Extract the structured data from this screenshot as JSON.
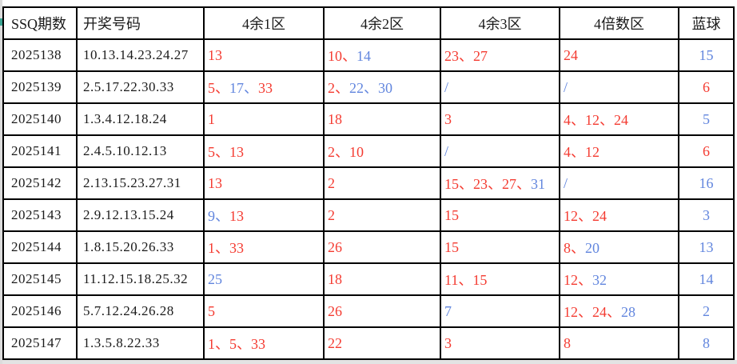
{
  "colors": {
    "red": "#f43b31",
    "blue": "#6286de",
    "text": "#1a1a1a",
    "border": "#000000"
  },
  "table": {
    "columns": [
      {
        "label": "SSQ期数"
      },
      {
        "label": "开奖号码"
      },
      {
        "label": "4余1区"
      },
      {
        "label": "4余2区"
      },
      {
        "label": "4余3区"
      },
      {
        "label": "4倍数区"
      },
      {
        "label": "蓝球"
      }
    ],
    "rows": [
      {
        "period": "2025138",
        "numbers": "10.13.14.23.24.27",
        "zone1": [
          {
            "t": "13",
            "c": "red"
          }
        ],
        "zone2": [
          {
            "t": "10、",
            "c": "red"
          },
          {
            "t": "14",
            "c": "blue"
          }
        ],
        "zone3": [
          {
            "t": "23、27",
            "c": "red"
          }
        ],
        "zone4": [
          {
            "t": "24",
            "c": "red"
          }
        ],
        "blue": {
          "t": "15",
          "c": "blue"
        }
      },
      {
        "period": "2025139",
        "numbers": "2.5.17.22.30.33",
        "zone1": [
          {
            "t": "5、",
            "c": "red"
          },
          {
            "t": "17、",
            "c": "blue"
          },
          {
            "t": "33",
            "c": "red"
          }
        ],
        "zone2": [
          {
            "t": "2、",
            "c": "red"
          },
          {
            "t": "22、30",
            "c": "blue"
          }
        ],
        "zone3": [
          {
            "t": "/",
            "c": "blue"
          }
        ],
        "zone4": [
          {
            "t": "/",
            "c": "blue"
          }
        ],
        "blue": {
          "t": "6",
          "c": "red"
        }
      },
      {
        "period": "2025140",
        "numbers": "1.3.4.12.18.24",
        "zone1": [
          {
            "t": "1",
            "c": "red"
          }
        ],
        "zone2": [
          {
            "t": "18",
            "c": "red"
          }
        ],
        "zone3": [
          {
            "t": "3",
            "c": "red"
          }
        ],
        "zone4": [
          {
            "t": "4、12、24",
            "c": "red"
          }
        ],
        "blue": {
          "t": "5",
          "c": "blue"
        }
      },
      {
        "period": "2025141",
        "numbers": "2.4.5.10.12.13",
        "zone1": [
          {
            "t": "5、13",
            "c": "red"
          }
        ],
        "zone2": [
          {
            "t": "2、10",
            "c": "red"
          }
        ],
        "zone3": [
          {
            "t": "/",
            "c": "blue"
          }
        ],
        "zone4": [
          {
            "t": "4、12",
            "c": "red"
          }
        ],
        "blue": {
          "t": "6",
          "c": "red"
        }
      },
      {
        "period": "2025142",
        "numbers": "2.13.15.23.27.31",
        "zone1": [
          {
            "t": "13",
            "c": "red"
          }
        ],
        "zone2": [
          {
            "t": "2",
            "c": "red"
          }
        ],
        "zone3": [
          {
            "t": "15、23、27、",
            "c": "red"
          },
          {
            "t": "31",
            "c": "blue"
          }
        ],
        "zone4": [
          {
            "t": "/",
            "c": "blue"
          }
        ],
        "blue": {
          "t": "16",
          "c": "blue"
        }
      },
      {
        "period": "2025143",
        "numbers": "2.9.12.13.15.24",
        "zone1": [
          {
            "t": "9、",
            "c": "blue"
          },
          {
            "t": "13",
            "c": "red"
          }
        ],
        "zone2": [
          {
            "t": "2",
            "c": "red"
          }
        ],
        "zone3": [
          {
            "t": "15",
            "c": "red"
          }
        ],
        "zone4": [
          {
            "t": "12、24",
            "c": "red"
          }
        ],
        "blue": {
          "t": "3",
          "c": "blue"
        }
      },
      {
        "period": "2025144",
        "numbers": "1.8.15.20.26.33",
        "zone1": [
          {
            "t": "1、33",
            "c": "red"
          }
        ],
        "zone2": [
          {
            "t": "26",
            "c": "red"
          }
        ],
        "zone3": [
          {
            "t": "15",
            "c": "red"
          }
        ],
        "zone4": [
          {
            "t": "8、",
            "c": "red"
          },
          {
            "t": "20",
            "c": "blue"
          }
        ],
        "blue": {
          "t": "13",
          "c": "blue"
        }
      },
      {
        "period": "2025145",
        "numbers": "11.12.15.18.25.32",
        "zone1": [
          {
            "t": "25",
            "c": "blue"
          }
        ],
        "zone2": [
          {
            "t": "18",
            "c": "red"
          }
        ],
        "zone3": [
          {
            "t": "11、15",
            "c": "red"
          }
        ],
        "zone4": [
          {
            "t": "12、",
            "c": "red"
          },
          {
            "t": "32",
            "c": "blue"
          }
        ],
        "blue": {
          "t": "14",
          "c": "blue"
        }
      },
      {
        "period": "2025146",
        "numbers": "5.7.12.24.26.28",
        "zone1": [
          {
            "t": "5",
            "c": "red"
          }
        ],
        "zone2": [
          {
            "t": "26",
            "c": "red"
          }
        ],
        "zone3": [
          {
            "t": "7",
            "c": "blue"
          }
        ],
        "zone4": [
          {
            "t": "12、24、",
            "c": "red"
          },
          {
            "t": "28",
            "c": "blue"
          }
        ],
        "blue": {
          "t": "2",
          "c": "blue"
        }
      },
      {
        "period": "2025147",
        "numbers": "1.3.5.8.22.33",
        "zone1": [
          {
            "t": "1、5、33",
            "c": "red"
          }
        ],
        "zone2": [
          {
            "t": "22",
            "c": "red"
          }
        ],
        "zone3": [
          {
            "t": "3",
            "c": "red"
          }
        ],
        "zone4": [
          {
            "t": "8",
            "c": "red"
          }
        ],
        "blue": {
          "t": "8",
          "c": "blue"
        }
      }
    ]
  }
}
